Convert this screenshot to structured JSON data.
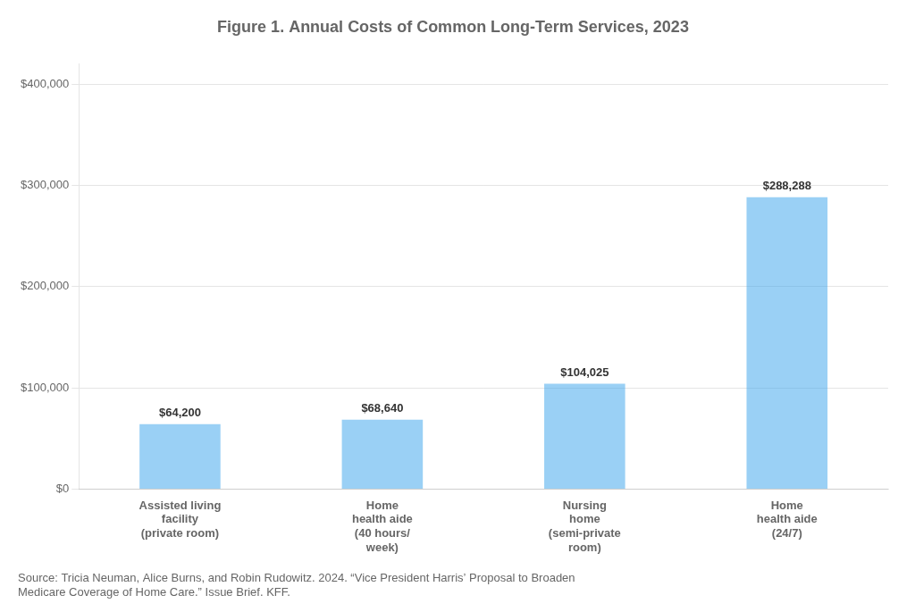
{
  "chart_data": {
    "type": "bar",
    "title": "Figure 1. Annual Costs of Common Long-Term Services, 2023",
    "categories": [
      "Assisted living\nfacility\n(private room)",
      "Home\nhealth aide\n(40 hours/\nweek)",
      "Nursing\nhome\n(semi-private\nroom)",
      "Home\nhealth aide\n(24/7)"
    ],
    "values": [
      64200,
      68640,
      104025,
      288288
    ],
    "value_labels": [
      "$64,200",
      "$68,640",
      "$104,025",
      "$288,288"
    ],
    "data_labels": true,
    "ylim": [
      0,
      420000
    ],
    "yticks": [
      {
        "value": 0,
        "label": "$0"
      },
      {
        "value": 100000,
        "label": "$100,000"
      },
      {
        "value": 200000,
        "label": "$200,000"
      },
      {
        "value": 300000,
        "label": "$300,000"
      },
      {
        "value": 400000,
        "label": "$400,000"
      }
    ],
    "grid": true,
    "annotations": [
      "Source: Tricia Neuman, Alice Burns, and Robin Rudowitz. 2024. “Vice President Harris’ Proposal to Broaden\nMedicare Coverage of Home Care.” Issue Brief. KFF."
    ]
  }
}
